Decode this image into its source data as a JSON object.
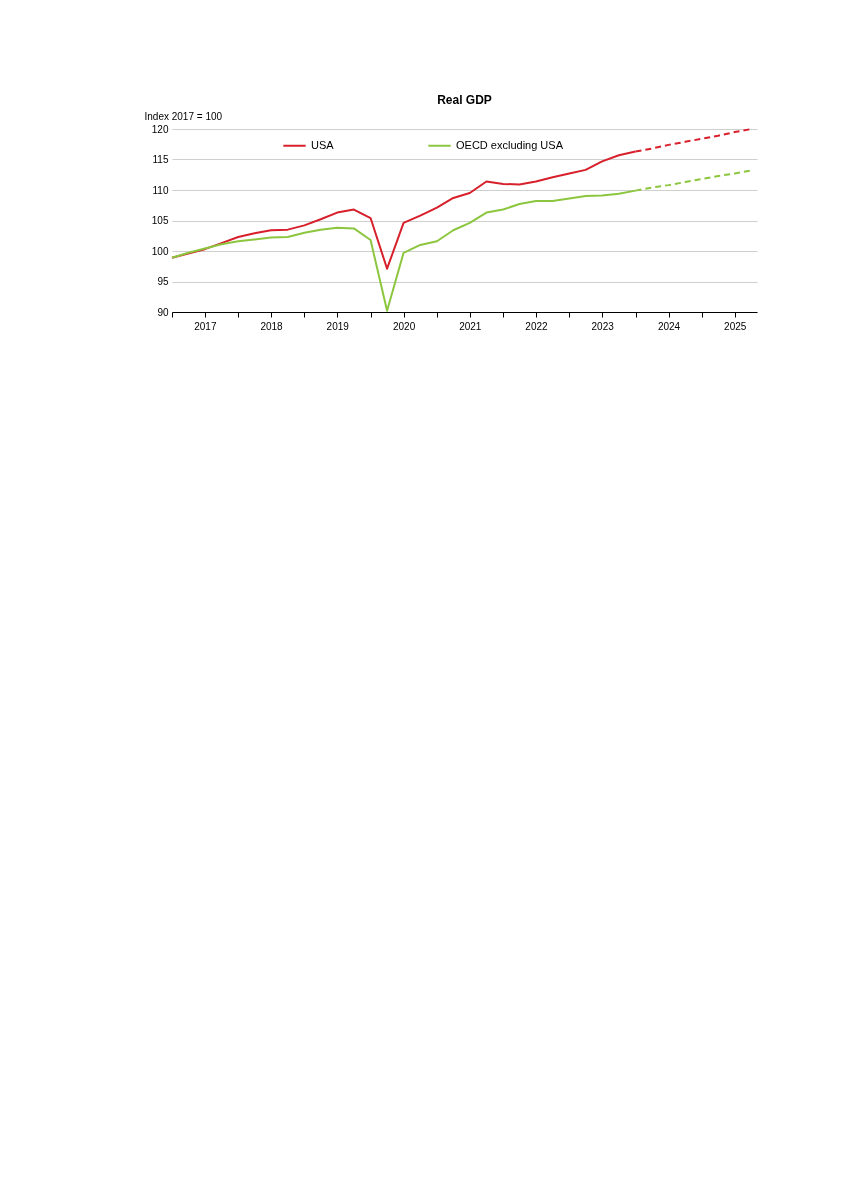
{
  "chart_data": {
    "type": "line",
    "title": "Real GDP",
    "ylabel": "Index 2017 = 100",
    "x": [
      "2017-01",
      "2017-04",
      "2017-07",
      "2017-10",
      "2018-01",
      "2018-04",
      "2018-07",
      "2018-10",
      "2019-01",
      "2019-04",
      "2019-07",
      "2019-10",
      "2020-01",
      "2020-04",
      "2020-07",
      "2020-10",
      "2021-01",
      "2021-04",
      "2021-07",
      "2021-10",
      "2022-01",
      "2022-04",
      "2022-07",
      "2022-10",
      "2023-01",
      "2023-04",
      "2023-07",
      "2023-10",
      "2024-01"
    ],
    "series": [
      {
        "name": "USA",
        "color": "#d7202b",
        "line_style": "solid",
        "values": [
          98.9,
          99.6,
          100.3,
          101.3,
          102.3,
          102.9,
          103.4,
          103.5,
          104.2,
          105.2,
          106.3,
          106.8,
          105.4,
          97.1,
          104.6,
          105.8,
          107.1,
          108.7,
          109.5,
          111.4,
          111.0,
          110.9,
          111.4,
          112.1,
          112.7,
          113.3,
          114.7,
          115.7,
          116.3
        ]
      },
      {
        "name": "OECD excluding USA",
        "color": "#8cc63f",
        "line_style": "solid",
        "values": [
          98.9,
          99.7,
          100.4,
          101.1,
          101.6,
          101.9,
          102.2,
          102.3,
          103.0,
          103.5,
          103.8,
          103.7,
          101.8,
          90.2,
          99.7,
          101.0,
          101.6,
          103.4,
          104.6,
          106.3,
          106.8,
          107.7,
          108.2,
          108.2,
          108.6,
          109.0,
          109.1,
          109.4,
          109.9
        ]
      },
      {
        "color": "#d7202b",
        "line_style": "dashed",
        "x": [
          "2024-01",
          "2024-04",
          "2024-07",
          "2024-10",
          "2025-01",
          "2025-04",
          "2025-07",
          "2025-10"
        ],
        "values": [
          116.3,
          116.8,
          117.4,
          117.9,
          118.4,
          118.9,
          119.5,
          120.0
        ]
      },
      {
        "color": "#8cc63f",
        "line_style": "dashed",
        "x": [
          "2024-01",
          "2024-04",
          "2024-07",
          "2024-10",
          "2025-01",
          "2025-04",
          "2025-07",
          "2025-10"
        ],
        "values": [
          109.9,
          110.4,
          110.8,
          111.3,
          111.8,
          112.3,
          112.7,
          113.2
        ]
      }
    ],
    "xlim": [
      "2017-01",
      "2025-11"
    ],
    "xticks": [
      {
        "value": "2017-01",
        "label": null
      },
      {
        "value": "2017-07",
        "label": "2017"
      },
      {
        "value": "2018-01",
        "label": null
      },
      {
        "value": "2018-07",
        "label": "2018"
      },
      {
        "value": "2019-01",
        "label": null
      },
      {
        "value": "2019-07",
        "label": "2019"
      },
      {
        "value": "2020-01",
        "label": null
      },
      {
        "value": "2020-07",
        "label": "2020"
      },
      {
        "value": "2021-01",
        "label": null
      },
      {
        "value": "2021-07",
        "label": "2021"
      },
      {
        "value": "2022-01",
        "label": null
      },
      {
        "value": "2022-07",
        "label": "2022"
      },
      {
        "value": "2023-01",
        "label": null
      },
      {
        "value": "2023-07",
        "label": "2023"
      },
      {
        "value": "2024-01",
        "label": null
      },
      {
        "value": "2024-07",
        "label": "2024"
      },
      {
        "value": "2025-01",
        "label": null
      },
      {
        "value": "2025-07",
        "label": "2025"
      }
    ],
    "ylim": [
      90,
      120
    ],
    "yticks": [
      90,
      95,
      100,
      105,
      110,
      115,
      120
    ],
    "grid": "y",
    "legend": "top",
    "marker": "none"
  }
}
